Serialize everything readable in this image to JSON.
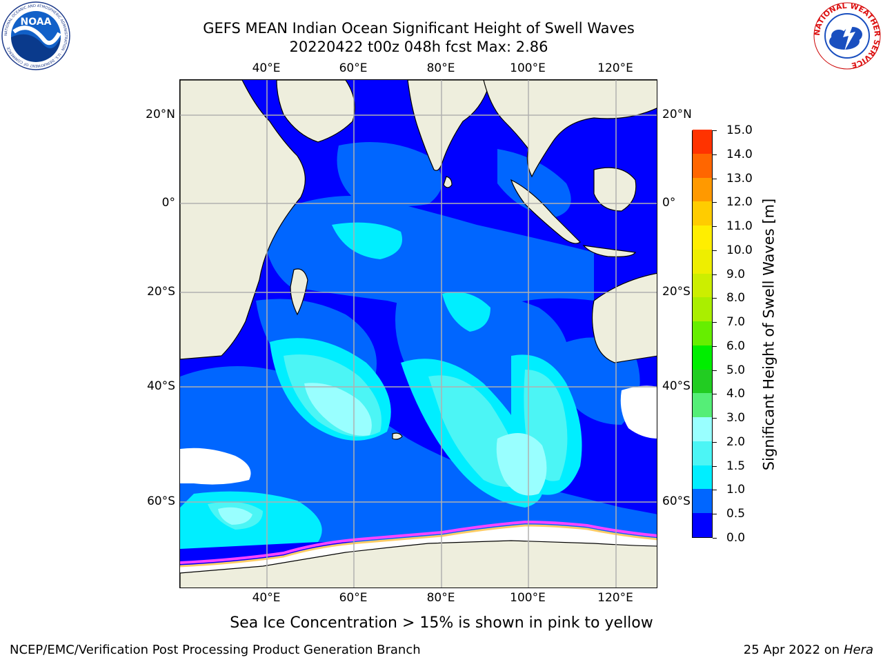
{
  "title": {
    "line1": "GEFS MEAN Indian Ocean Significant Height of Swell Waves",
    "line2": "20220422 t00z 048h fcst   Max: 2.86"
  },
  "logos": {
    "noaa": {
      "text": "NOAA",
      "ring_text": "NATIONAL OCEANIC AND ATMOSPHERIC ADMINISTRATION · U.S. DEPARTMENT OF COMMERCE"
    },
    "nws": {
      "ring_text": "NATIONAL WEATHER SERVICE"
    }
  },
  "map": {
    "lon_ticks": [
      "40°E",
      "60°E",
      "80°E",
      "100°E",
      "120°E"
    ],
    "lat_ticks_left": [
      "20°N",
      "0°",
      "20°S",
      "40°S",
      "60°S"
    ],
    "lat_ticks_right": [
      "20°N",
      "0°",
      "20°S",
      "40°S",
      "60°S"
    ],
    "colors": {
      "land": "#eeeedd",
      "gridline": "#b0b0b0",
      "coastline": "#000000",
      "no_data": "#ffffff"
    }
  },
  "colorbar": {
    "title": "Significant Height of Swell Waves [m]",
    "labels": [
      "0.0",
      "0.5",
      "1.0",
      "1.5",
      "2.0",
      "3.0",
      "4.0",
      "5.0",
      "6.0",
      "7.0",
      "8.0",
      "9.0",
      "10.0",
      "11.0",
      "12.0",
      "13.0",
      "14.0",
      "15.0"
    ],
    "colors": [
      "#0000ff",
      "#0066ff",
      "#00eeff",
      "#4cf5f5",
      "#99ffff",
      "#55ee77",
      "#22cc22",
      "#00ee00",
      "#66ee00",
      "#aaee00",
      "#ccee00",
      "#eeee00",
      "#ffee00",
      "#ffcc00",
      "#ff9900",
      "#ff6600",
      "#ff3300"
    ]
  },
  "caption": "Sea Ice Concentration > 15% is shown in pink to yellow",
  "footer": {
    "left": "NCEP/EMC/Verification Post Processing Product Generation Branch",
    "right_prefix": "25 Apr 2022 on ",
    "right_machine": "Hera"
  },
  "sea_ice_colors": [
    "#ff44ff",
    "#ff99cc",
    "#ffcc66",
    "#ffee88"
  ]
}
